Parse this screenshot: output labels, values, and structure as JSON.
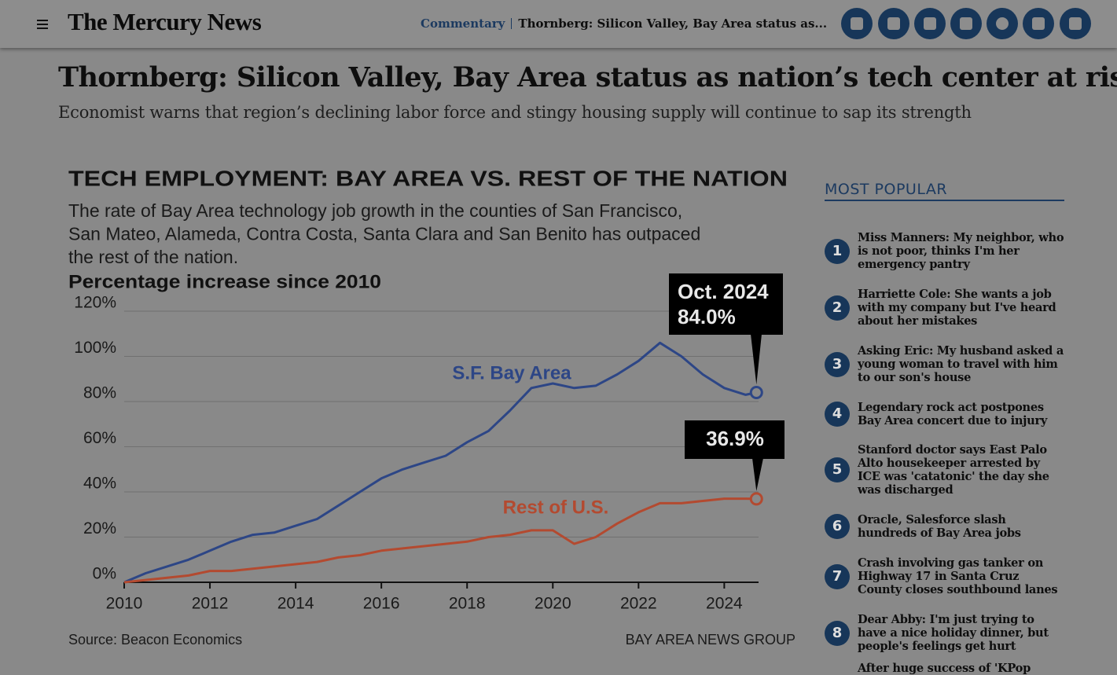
{
  "header": {
    "logo": "The Mercury News",
    "section": "Commentary",
    "breadcrumb_title": "Thornberg: Silicon Valley, Bay Area status as..."
  },
  "article": {
    "headline": "Thornberg: Silicon Valley, Bay Area status as nation’s tech center at risk",
    "subheadline": "Economist warns that region’s declining labor force and stingy housing supply will continue to sap its strength"
  },
  "chart_data": {
    "type": "line",
    "title": "TECH EMPLOYMENT: BAY AREA VS. REST OF THE NATION",
    "subtitle": [
      "The rate of Bay Area technology job growth in the counties of San Francisco,",
      "San Mateo, Alameda, Contra Costa, Santa Clara and San Benito has outpaced",
      "the rest of the nation."
    ],
    "y_label": "Percentage increase since 2010",
    "source": "Source: Beacon Economics",
    "credit": "BAY AREA NEWS GROUP",
    "end_date": "Oct. 2024",
    "x": [
      2010,
      2010.5,
      2011,
      2011.5,
      2012,
      2012.5,
      2013,
      2013.5,
      2014,
      2014.5,
      2015,
      2015.5,
      2016,
      2016.5,
      2017,
      2017.5,
      2018,
      2018.5,
      2019,
      2019.5,
      2020,
      2020.5,
      2021,
      2021.5,
      2022,
      2022.5,
      2023,
      2023.5,
      2024,
      2024.5,
      2024.75
    ],
    "series": [
      {
        "name": "S.F. Bay Area",
        "color": "#2d4686",
        "end_label": "84.0%",
        "values": [
          0,
          4,
          7,
          10,
          14,
          18,
          21,
          22,
          25,
          28,
          34,
          40,
          46,
          50,
          53,
          56,
          62,
          67,
          76,
          86,
          88,
          86,
          87,
          92,
          98,
          106,
          100,
          92,
          86,
          83,
          84.0
        ]
      },
      {
        "name": "Rest of U.S.",
        "color": "#b34a30",
        "end_label": "36.9%",
        "values": [
          0,
          1,
          2,
          3,
          5,
          5,
          6,
          7,
          8,
          9,
          11,
          12,
          14,
          15,
          16,
          17,
          18,
          20,
          21,
          23,
          23,
          17,
          20,
          26,
          31,
          35,
          35,
          36,
          37,
          37,
          36.9
        ]
      }
    ],
    "xlim": [
      2010,
      2024.8
    ],
    "xticks": [
      2010,
      2012,
      2014,
      2016,
      2018,
      2020,
      2022,
      2024
    ],
    "ylim": [
      0,
      120
    ],
    "yticks": [
      {
        "value": 0,
        "label": "0%"
      },
      {
        "value": 20,
        "label": "20%"
      },
      {
        "value": 40,
        "label": "40%"
      },
      {
        "value": 60,
        "label": "60%"
      },
      {
        "value": 80,
        "label": "80%"
      },
      {
        "value": 100,
        "label": "100%"
      },
      {
        "value": 120,
        "label": "120%"
      }
    ],
    "grid": true
  },
  "most_popular": {
    "heading": "MOST POPULAR",
    "items": [
      {
        "rank": 1,
        "title": "Miss Manners: My neighbor, who is not poor, thinks I'm her emergency pantry"
      },
      {
        "rank": 2,
        "title": "Harriette Cole: She wants a job with my company but I've heard about her mistakes"
      },
      {
        "rank": 3,
        "title": "Asking Eric: My husband asked a young woman to travel with him to our son's house"
      },
      {
        "rank": 4,
        "title": "Legendary rock act postpones Bay Area concert due to injury"
      },
      {
        "rank": 5,
        "title": "Stanford doctor says East Palo Alto housekeeper arrested by ICE was 'catatonic' the day she was discharged"
      },
      {
        "rank": 6,
        "title": "Oracle, Salesforce slash hundreds of Bay Area jobs"
      },
      {
        "rank": 7,
        "title": "Crash involving gas tanker on Highway 17 in Santa Cruz County closes southbound lanes"
      },
      {
        "rank": 8,
        "title": "Dear Abby: I'm just trying to have a nice holiday dinner, but people's feelings get hurt"
      },
      {
        "title": "After huge success of 'KPop"
      }
    ]
  }
}
